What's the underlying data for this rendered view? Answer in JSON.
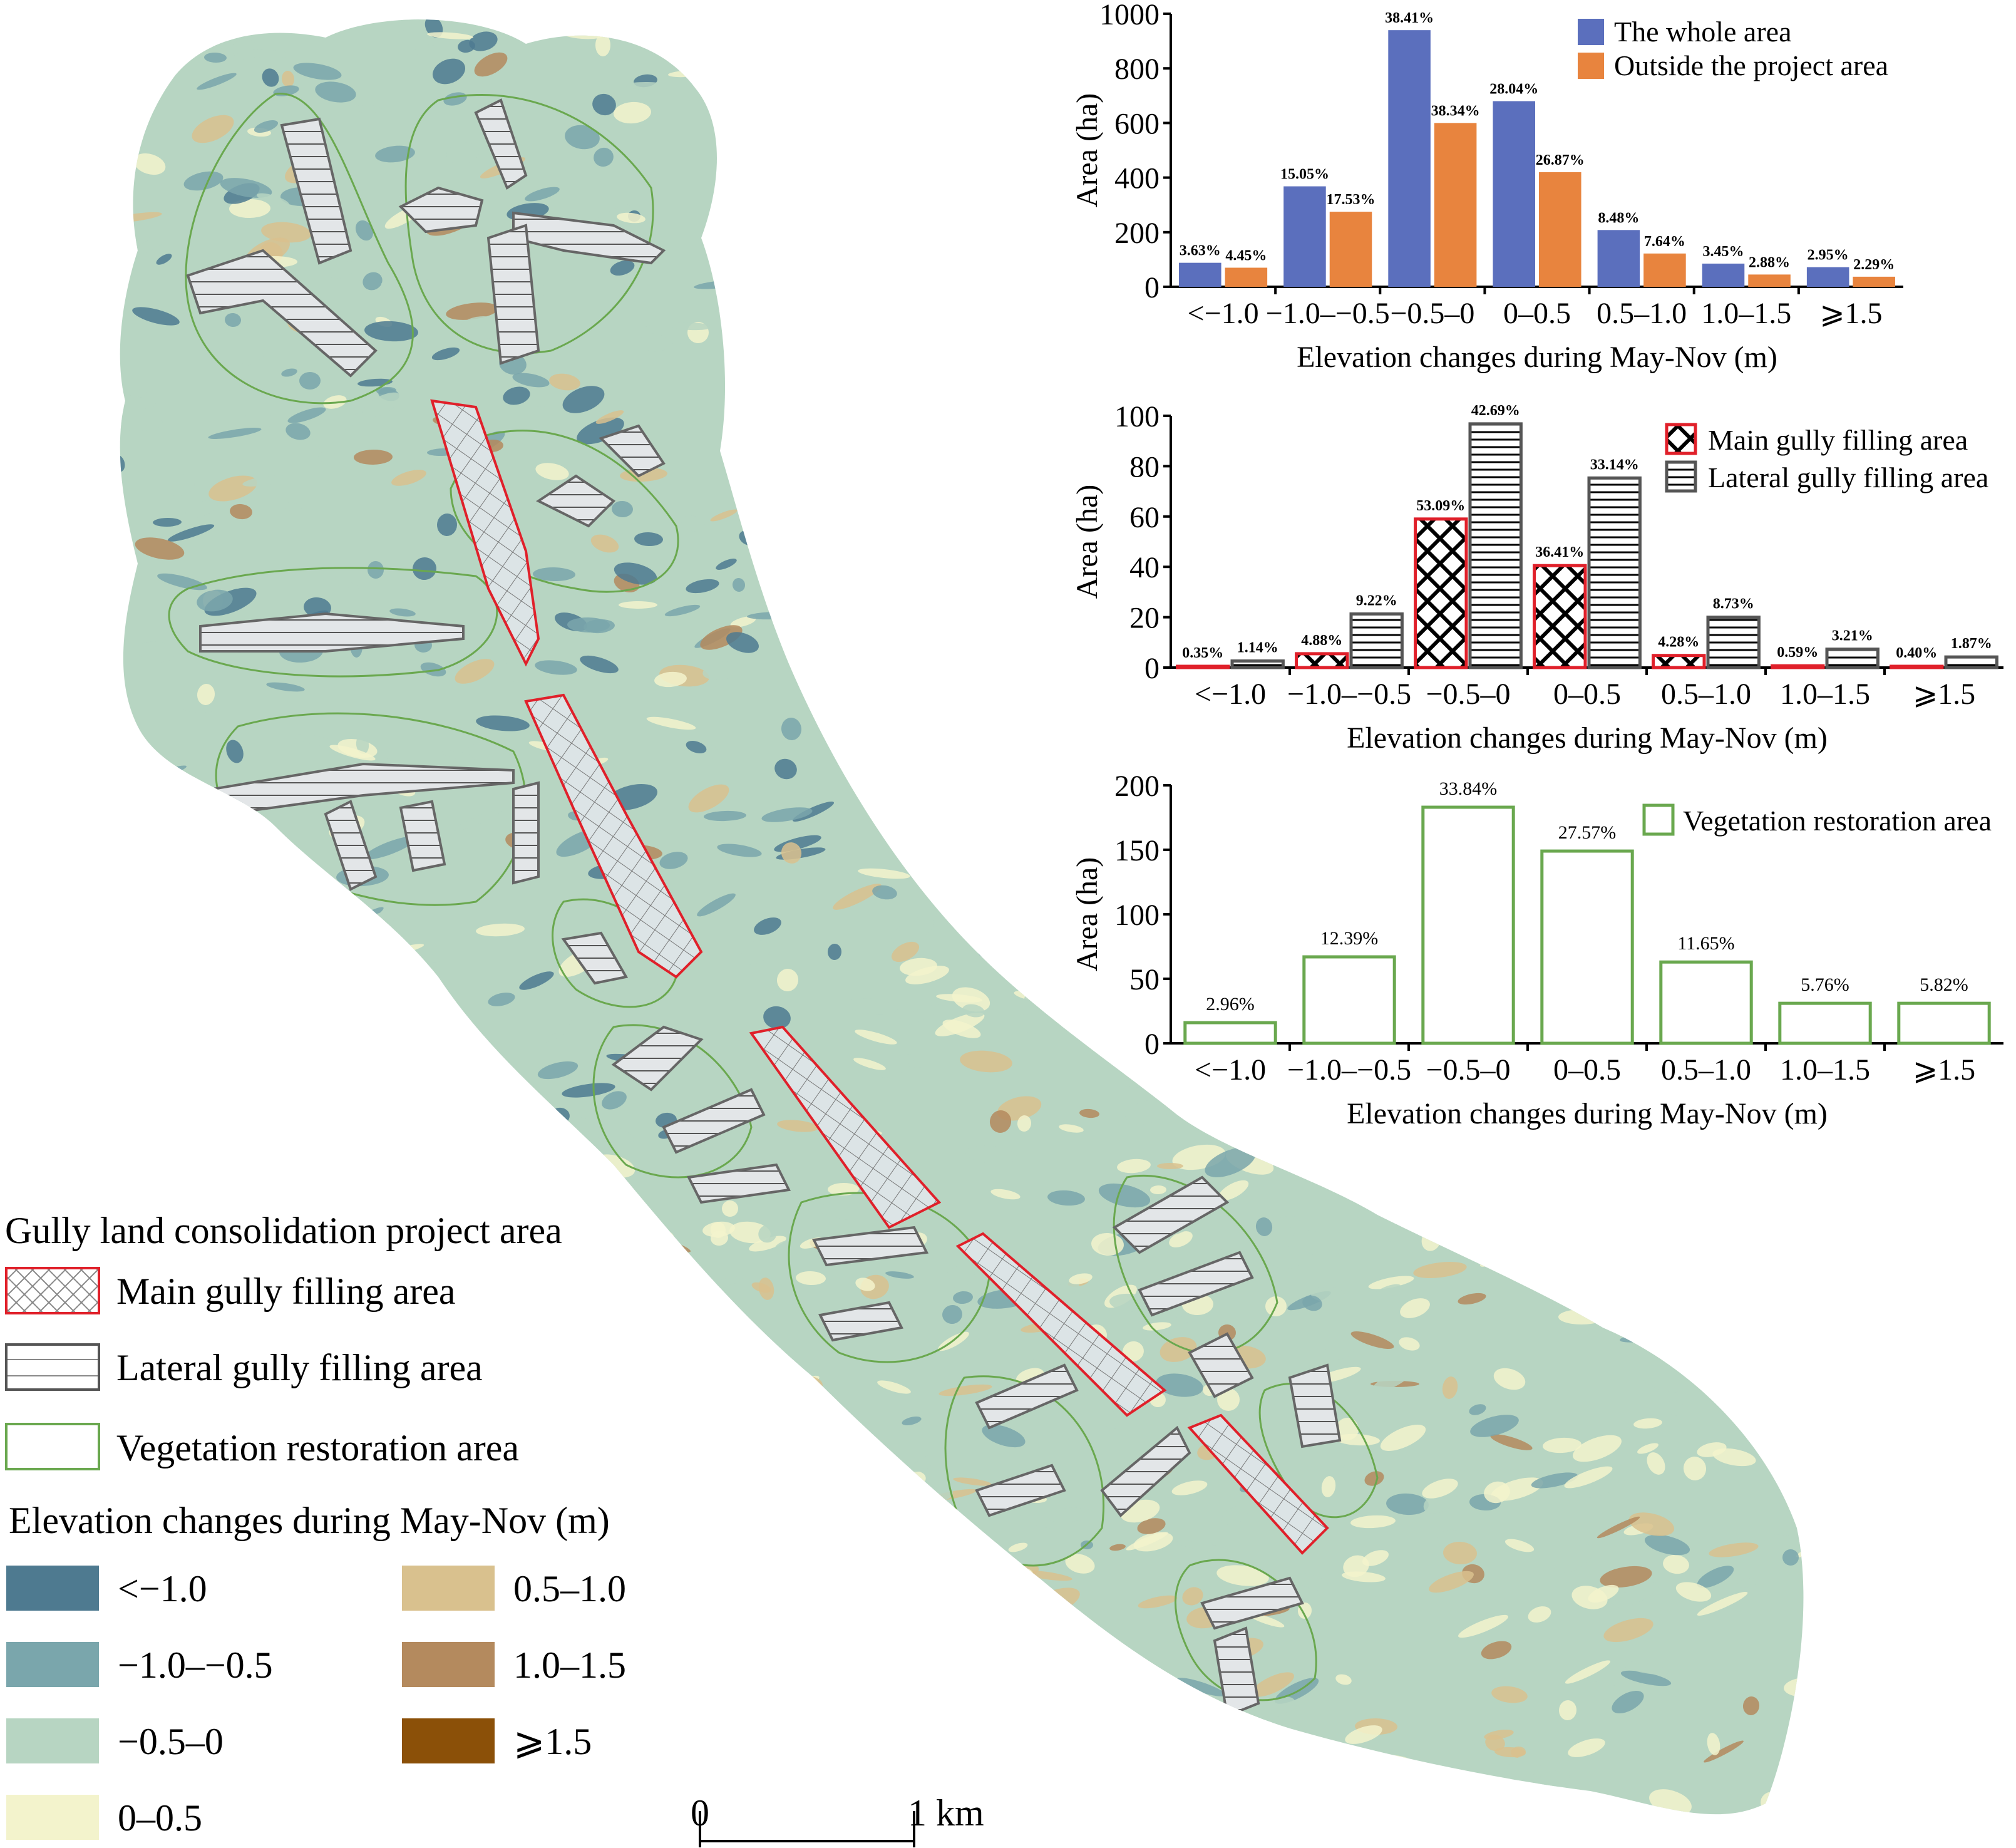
{
  "legend": {
    "project_title": "Gully land consolidation project area",
    "main_label": "Main gully  filling area",
    "lateral_label": "Lateral gully filling area",
    "veg_label": "Vegetation restoration area",
    "elev_title": "Elevation changes during May-Nov (m)",
    "classes": [
      {
        "label": "<−1.0",
        "color": "#4e7a90"
      },
      {
        "label": "−1.0–−0.5",
        "color": "#7aa6ac"
      },
      {
        "label": "−0.5–0",
        "color": "#b7d5c2"
      },
      {
        "label": "0–0.5",
        "color": "#f3f3cc"
      },
      {
        "label": "0.5–1.0",
        "color": "#d9c18e"
      },
      {
        "label": "1.0–1.5",
        "color": "#b48a5e"
      },
      {
        "label": "⩾1.5",
        "color": "#8b5008"
      }
    ]
  },
  "scale_bar": {
    "start": "0",
    "end": "1 km"
  },
  "colors": {
    "whole": "#5b6fbd",
    "outside": "#e8843e",
    "main_edge": "#e0202a",
    "lateral_edge": "#555555",
    "veg_edge": "#6aa84f"
  },
  "chart_data": [
    {
      "type": "bar",
      "categories": [
        "<−1.0",
        "−1.0–−0.5",
        "−0.5–0",
        "0–0.5",
        "0.5–1.0",
        "1.0–1.5",
        "⩾1.5"
      ],
      "series": [
        {
          "name": "The whole area",
          "values": [
            88,
            368,
            940,
            680,
            208,
            85,
            72
          ],
          "labels": [
            "3.63%",
            "15.05%",
            "38.41%",
            "28.04%",
            "8.48%",
            "3.45%",
            "2.95%"
          ]
        },
        {
          "name": "Outside the project area",
          "values": [
            70,
            275,
            600,
            420,
            122,
            45,
            37
          ],
          "labels": [
            "4.45%",
            "17.53%",
            "38.34%",
            "26.87%",
            "7.64%",
            "2.88%",
            "2.29%"
          ]
        }
      ],
      "xlabel": "Elevation changes during May-Nov (m)",
      "ylabel": "Area (ha)",
      "ylim": [
        0,
        1000
      ],
      "yticks": [
        "0",
        "200",
        "400",
        "600",
        "800",
        "1000"
      ]
    },
    {
      "type": "bar",
      "categories": [
        "<−1.0",
        "−1.0–−0.5",
        "−0.5–0",
        "0–0.5",
        "0.5–1.0",
        "1.0–1.5",
        "⩾1.5"
      ],
      "series": [
        {
          "name": "Main gully filling area",
          "values": [
            0.5,
            5.5,
            59,
            40.5,
            4.8,
            0.7,
            0.5
          ],
          "labels": [
            "0.35%",
            "4.88%",
            "53.09%",
            "36.41%",
            "4.28%",
            "0.59%",
            "0.40%"
          ]
        },
        {
          "name": "Lateral gully filling area",
          "values": [
            2.6,
            21.3,
            96.8,
            75.3,
            20,
            7.3,
            4.2
          ],
          "labels": [
            "1.14%",
            "9.22%",
            "42.69%",
            "33.14%",
            "8.73%",
            "3.21%",
            "1.87%"
          ]
        }
      ],
      "xlabel": "Elevation changes during May-Nov (m)",
      "ylabel": "Area (ha)",
      "ylim": [
        0,
        100
      ],
      "yticks": [
        "0",
        "20",
        "40",
        "60",
        "80",
        "100"
      ]
    },
    {
      "type": "bar",
      "categories": [
        "<−1.0",
        "−1.0–−0.5",
        "−0.5–0",
        "0–0.5",
        "0.5–1.0",
        "1.0–1.5",
        "⩾1.5"
      ],
      "series": [
        {
          "name": "Vegetation restoration area",
          "values": [
            16,
            67,
            183,
            149,
            63,
            31,
            31
          ],
          "labels": [
            "2.96%",
            "12.39%",
            "33.84%",
            "27.57%",
            "11.65%",
            "5.76%",
            "5.82%"
          ]
        }
      ],
      "xlabel": "Elevation changes during May-Nov (m)",
      "ylabel": "Area (ha)",
      "ylim": [
        0,
        200
      ],
      "yticks": [
        "0",
        "50",
        "100",
        "150",
        "200"
      ]
    }
  ]
}
